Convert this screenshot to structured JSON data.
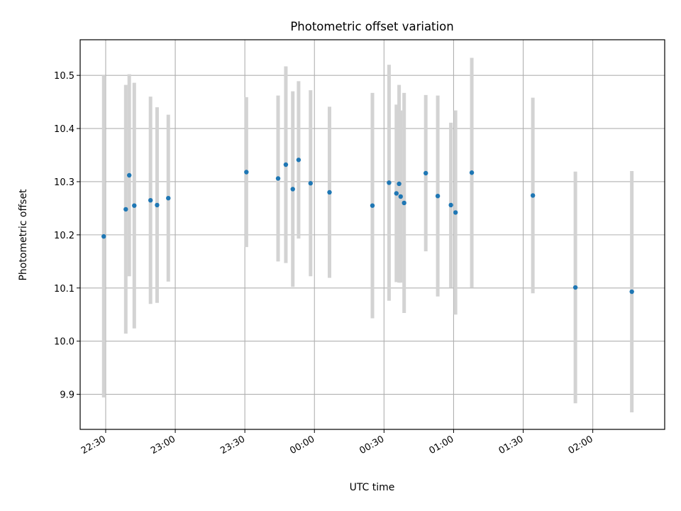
{
  "chart_data": {
    "type": "scatter",
    "title": "Photometric offset variation",
    "xlabel": "UTC time",
    "ylabel": "Photometric offset",
    "x_is_time": true,
    "xlim": [
      "22:19",
      "02:31"
    ],
    "ylim": [
      9.834,
      10.567
    ],
    "grid": true,
    "marker_color": "#1f77b4",
    "errorbar_color": "#d3d3d3",
    "x_ticks": [
      "22:30",
      "23:00",
      "23:30",
      "00:00",
      "00:30",
      "01:00",
      "01:30",
      "02:00"
    ],
    "y_ticks": [
      "9.9",
      "10.0",
      "10.1",
      "10.2",
      "10.3",
      "10.4",
      "10.5"
    ],
    "series": [
      {
        "points": [
          {
            "x": "22:29:10",
            "y": 10.197,
            "err": 0.303
          },
          {
            "x": "22:38:40",
            "y": 10.248,
            "err": 0.234
          },
          {
            "x": "22:40:10",
            "y": 10.312,
            "err": 0.19
          },
          {
            "x": "22:42:20",
            "y": 10.255,
            "err": 0.231
          },
          {
            "x": "22:49:20",
            "y": 10.265,
            "err": 0.195
          },
          {
            "x": "22:52:10",
            "y": 10.256,
            "err": 0.184
          },
          {
            "x": "22:57:00",
            "y": 10.269,
            "err": 0.157
          },
          {
            "x": "23:30:40",
            "y": 10.318,
            "err": 0.141
          },
          {
            "x": "23:44:20",
            "y": 10.306,
            "err": 0.156
          },
          {
            "x": "23:47:40",
            "y": 10.332,
            "err": 0.185
          },
          {
            "x": "23:50:40",
            "y": 10.286,
            "err": 0.184
          },
          {
            "x": "23:53:10",
            "y": 10.341,
            "err": 0.148
          },
          {
            "x": "23:58:20",
            "y": 10.297,
            "err": 0.175
          },
          {
            "x": "00:06:30",
            "y": 10.28,
            "err": 0.161
          },
          {
            "x": "00:25:00",
            "y": 10.255,
            "err": 0.212
          },
          {
            "x": "00:32:10",
            "y": 10.298,
            "err": 0.222
          },
          {
            "x": "00:35:20",
            "y": 10.278,
            "err": 0.167
          },
          {
            "x": "00:36:30",
            "y": 10.296,
            "err": 0.186
          },
          {
            "x": "00:37:10",
            "y": 10.272,
            "err": 0.162
          },
          {
            "x": "00:38:40",
            "y": 10.26,
            "err": 0.207
          },
          {
            "x": "00:48:00",
            "y": 10.316,
            "err": 0.147
          },
          {
            "x": "00:53:10",
            "y": 10.273,
            "err": 0.189
          },
          {
            "x": "00:58:50",
            "y": 10.256,
            "err": 0.155
          },
          {
            "x": "01:00:50",
            "y": 10.242,
            "err": 0.192
          },
          {
            "x": "01:07:50",
            "y": 10.317,
            "err": 0.216
          },
          {
            "x": "01:34:10",
            "y": 10.274,
            "err": 0.184
          },
          {
            "x": "01:52:30",
            "y": 10.101,
            "err": 0.218
          },
          {
            "x": "02:16:50",
            "y": 10.093,
            "err": 0.227
          }
        ]
      }
    ]
  }
}
